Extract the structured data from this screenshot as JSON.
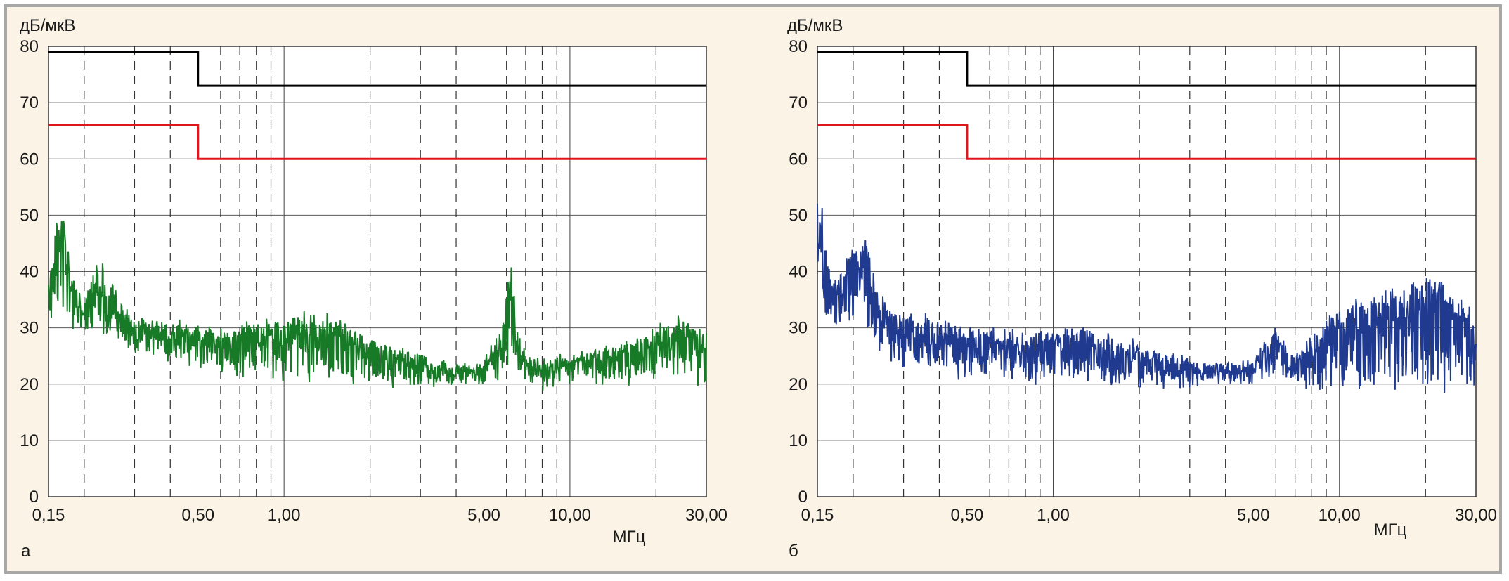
{
  "chart_data": [
    {
      "type": "line",
      "panel_label": "а",
      "ylabel": "дБ/мкВ",
      "xlabel": "МГц",
      "x_scale": "log",
      "xlim": [
        0.15,
        30
      ],
      "ylim": [
        0,
        80
      ],
      "y_ticks": [
        "0",
        "10",
        "20",
        "30",
        "40",
        "50",
        "60",
        "70",
        "80"
      ],
      "x_ticks": [
        {
          "value": 0.15,
          "label": "0,15"
        },
        {
          "value": 0.5,
          "label": "0,50"
        },
        {
          "value": 1,
          "label": "1,00"
        },
        {
          "value": 5,
          "label": "5,00"
        },
        {
          "value": 10,
          "label": "10,00"
        },
        {
          "value": 30,
          "label": "30,00"
        }
      ],
      "grid": true,
      "series": [
        {
          "role": "limit-quasi-peak",
          "color": "#000000",
          "x": [
            0.15,
            0.5,
            0.5,
            30
          ],
          "y": [
            79,
            79,
            73,
            73
          ]
        },
        {
          "role": "limit-average",
          "color": "#e0161d",
          "x": [
            0.15,
            0.5,
            0.5,
            30
          ],
          "y": [
            66,
            66,
            60,
            60
          ]
        },
        {
          "role": "measured-spectrum",
          "color": "#177a26",
          "x": [
            0.15,
            0.16,
            0.17,
            0.18,
            0.2,
            0.22,
            0.25,
            0.3,
            0.35,
            0.4,
            0.45,
            0.5,
            0.6,
            0.7,
            0.8,
            1.0,
            1.5,
            2.0,
            3.0,
            4.0,
            5.0,
            5.8,
            6.2,
            6.5,
            7.0,
            8.0,
            10,
            15,
            20,
            25,
            30
          ],
          "y": [
            37,
            49,
            50,
            40,
            34,
            43,
            38,
            32,
            31,
            30,
            31,
            30,
            30,
            30,
            31,
            32,
            32,
            28,
            25,
            23,
            24,
            30,
            43,
            30,
            25,
            24,
            25,
            27,
            30,
            32,
            29
          ],
          "baseline": [
            30,
            33,
            33,
            30,
            28,
            28,
            27,
            25,
            25,
            24,
            24,
            23,
            22,
            21,
            21,
            21,
            21,
            20,
            20,
            20,
            20,
            21,
            24,
            22,
            20,
            19,
            20,
            20,
            20,
            20,
            20
          ]
        }
      ]
    },
    {
      "type": "line",
      "panel_label": "б",
      "ylabel": "дБ/мкВ",
      "xlabel": "МГц",
      "x_scale": "log",
      "xlim": [
        0.15,
        30
      ],
      "ylim": [
        0,
        80
      ],
      "y_ticks": [
        "0",
        "10",
        "20",
        "30",
        "40",
        "50",
        "60",
        "70",
        "80"
      ],
      "x_ticks": [
        {
          "value": 0.15,
          "label": "0,15"
        },
        {
          "value": 0.5,
          "label": "0,50"
        },
        {
          "value": 1,
          "label": "1,00"
        },
        {
          "value": 5,
          "label": "5,00"
        },
        {
          "value": 10,
          "label": "10,00"
        },
        {
          "value": 30,
          "label": "30,00"
        }
      ],
      "grid": true,
      "series": [
        {
          "role": "limit-quasi-peak",
          "color": "#000000",
          "x": [
            0.15,
            0.5,
            0.5,
            30
          ],
          "y": [
            79,
            79,
            73,
            73
          ]
        },
        {
          "role": "limit-average",
          "color": "#e0161d",
          "x": [
            0.15,
            0.5,
            0.5,
            30
          ],
          "y": [
            66,
            66,
            60,
            60
          ]
        },
        {
          "role": "measured-spectrum",
          "color": "#1f3a8f",
          "x": [
            0.15,
            0.155,
            0.16,
            0.17,
            0.18,
            0.2,
            0.22,
            0.25,
            0.3,
            0.35,
            0.4,
            0.5,
            0.6,
            0.7,
            0.8,
            1.0,
            1.5,
            2.0,
            3.0,
            4.0,
            5.0,
            6.0,
            6.5,
            7.0,
            8.0,
            10,
            15,
            20,
            25,
            30
          ],
          "y": [
            52,
            53,
            45,
            37,
            40,
            45,
            47,
            35,
            32,
            32,
            31,
            30,
            30,
            29,
            29,
            30,
            29,
            27,
            24,
            23,
            24,
            30,
            26,
            25,
            28,
            34,
            37,
            39,
            39,
            32
          ],
          "baseline": [
            34,
            36,
            31,
            28,
            29,
            29,
            29,
            24,
            23,
            23,
            22,
            21,
            21,
            20,
            20,
            20,
            19,
            19,
            20,
            20,
            20,
            21,
            20,
            20,
            19,
            18,
            18,
            18,
            18,
            18
          ]
        }
      ]
    }
  ]
}
